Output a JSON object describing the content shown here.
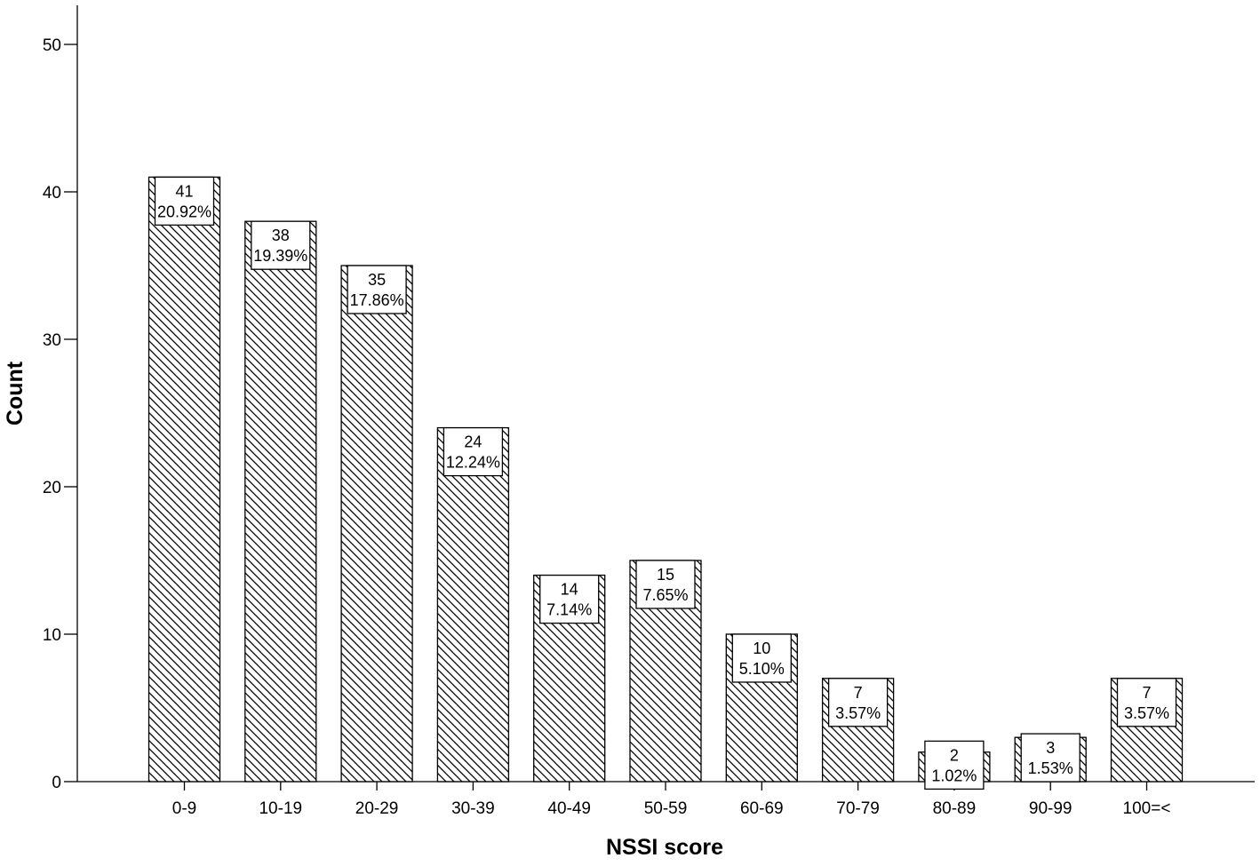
{
  "chart_data": {
    "type": "bar",
    "xlabel": "NSSI score",
    "ylabel": "Count",
    "ylim": [
      0,
      52
    ],
    "yticks": [
      0,
      10,
      20,
      30,
      40,
      50
    ],
    "grid": false,
    "bar_fill": "diagonal-hatch",
    "colors": {
      "bar_stroke": "#000000",
      "hatch": "#000000",
      "background": "#ffffff",
      "axis": "#000000"
    },
    "categories": [
      "0-9",
      "10-19",
      "20-29",
      "30-39",
      "40-49",
      "50-59",
      "60-69",
      "70-79",
      "80-89",
      "90-99",
      "100=<"
    ],
    "values": [
      41,
      38,
      35,
      24,
      14,
      15,
      10,
      7,
      2,
      3,
      7
    ],
    "count_labels": [
      "41",
      "38",
      "35",
      "24",
      "14",
      "15",
      "10",
      "7",
      "2",
      "3",
      "7"
    ],
    "percent_labels": [
      "20.92%",
      "19.39%",
      "17.86%",
      "12.24%",
      "7.14%",
      "7.65%",
      "5.10%",
      "3.57%",
      "1.02%",
      "1.53%",
      "3.57%"
    ]
  }
}
